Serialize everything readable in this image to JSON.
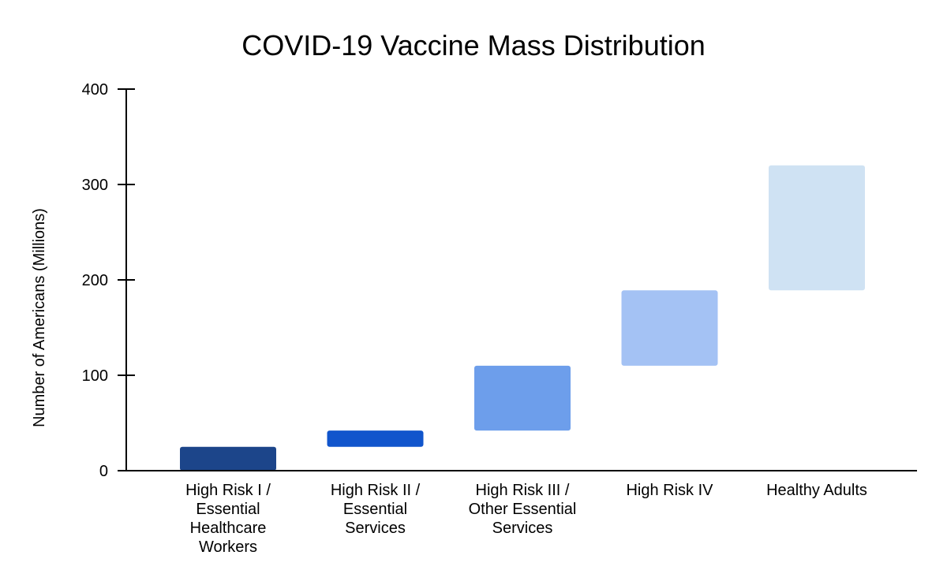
{
  "chart_data": {
    "type": "bar",
    "subtype": "waterfall",
    "title": "COVID-19 Vaccine Mass Distribution",
    "xlabel": "",
    "ylabel": "Number of Americans (Millions)",
    "ylim": [
      0,
      400
    ],
    "yticks": [
      0,
      100,
      200,
      300,
      400
    ],
    "grid": false,
    "legend": "none",
    "categories": [
      [
        "High Risk I /",
        "Essential",
        "Healthcare",
        "Workers"
      ],
      [
        "High Risk II /",
        "Essential",
        "Services"
      ],
      [
        "High Risk III /",
        "Other Essential",
        "Services"
      ],
      [
        "High Risk IV"
      ],
      [
        "Healthy Adults"
      ]
    ],
    "bars": [
      {
        "start": 0,
        "end": 25,
        "color": "#1c458a"
      },
      {
        "start": 25,
        "end": 42,
        "color": "#1155cc"
      },
      {
        "start": 42,
        "end": 110,
        "color": "#6d9eeb"
      },
      {
        "start": 110,
        "end": 189,
        "color": "#a4c2f4"
      },
      {
        "start": 189,
        "end": 320,
        "color": "#cfe2f3"
      }
    ]
  }
}
